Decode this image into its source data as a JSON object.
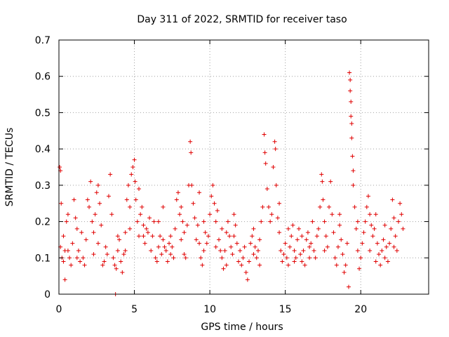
{
  "chart_data": {
    "type": "scatter",
    "title": "Day 311 of 2022, SRMTID for receiver taso",
    "xlabel": "GPS time / hours",
    "ylabel": "SRMTID / TECUs",
    "xlim": [
      0,
      24.5
    ],
    "ylim": [
      0,
      0.7
    ],
    "xticks": [
      0,
      5,
      10,
      15,
      20
    ],
    "xtick_labels": [
      "0",
      "5",
      "10",
      "15",
      "20"
    ],
    "yticks": [
      0,
      0.1,
      0.2,
      0.3,
      0.4,
      0.5,
      0.6,
      0.7
    ],
    "ytick_labels": [
      "0",
      "0.1",
      "0.2",
      "0.3",
      "0.4",
      "0.5",
      "0.6",
      "0.7"
    ],
    "grid": true,
    "marker": "+",
    "color": "#e00000",
    "series": [
      {
        "name": "SRMTID",
        "points": [
          [
            0.05,
            0.35
          ],
          [
            0.1,
            0.34
          ],
          [
            0.15,
            0.25
          ],
          [
            0.1,
            0.13
          ],
          [
            0.2,
            0.1
          ],
          [
            0.3,
            0.09
          ],
          [
            0.4,
            0.12
          ],
          [
            0.5,
            0.2
          ],
          [
            0.6,
            0.22
          ],
          [
            0.7,
            0.1
          ],
          [
            0.4,
            0.04
          ],
          [
            0.8,
            0.08
          ],
          [
            0.9,
            0.14
          ],
          [
            1.0,
            0.26
          ],
          [
            1.1,
            0.21
          ],
          [
            1.2,
            0.18
          ],
          [
            1.3,
            0.12
          ],
          [
            1.4,
            0.09
          ],
          [
            1.5,
            0.17
          ],
          [
            1.6,
            0.1
          ],
          [
            1.7,
            0.08
          ],
          [
            1.8,
            0.15
          ],
          [
            1.9,
            0.26
          ],
          [
            2.0,
            0.24
          ],
          [
            2.1,
            0.31
          ],
          [
            2.2,
            0.2
          ],
          [
            2.3,
            0.17
          ],
          [
            2.4,
            0.22
          ],
          [
            2.5,
            0.28
          ],
          [
            2.6,
            0.3
          ],
          [
            2.7,
            0.25
          ],
          [
            2.8,
            0.19
          ],
          [
            2.9,
            0.08
          ],
          [
            3.0,
            0.09
          ],
          [
            3.1,
            0.13
          ],
          [
            3.2,
            0.11
          ],
          [
            3.3,
            0.27
          ],
          [
            3.4,
            0.33
          ],
          [
            3.5,
            0.22
          ],
          [
            3.6,
            0.1
          ],
          [
            3.7,
            0.08
          ],
          [
            3.75,
            0.0
          ],
          [
            3.8,
            0.07
          ],
          [
            3.9,
            0.12
          ],
          [
            4.0,
            0.15
          ],
          [
            4.1,
            0.09
          ],
          [
            4.2,
            0.06
          ],
          [
            4.3,
            0.11
          ],
          [
            4.4,
            0.17
          ],
          [
            4.5,
            0.26
          ],
          [
            4.6,
            0.3
          ],
          [
            4.7,
            0.24
          ],
          [
            4.8,
            0.33
          ],
          [
            4.9,
            0.35
          ],
          [
            5.0,
            0.37
          ],
          [
            5.05,
            0.31
          ],
          [
            5.1,
            0.26
          ],
          [
            5.2,
            0.2
          ],
          [
            5.3,
            0.16
          ],
          [
            5.4,
            0.22
          ],
          [
            5.5,
            0.24
          ],
          [
            5.6,
            0.19
          ],
          [
            5.7,
            0.14
          ],
          [
            5.8,
            0.18
          ],
          [
            5.9,
            0.17
          ],
          [
            6.0,
            0.21
          ],
          [
            6.1,
            0.12
          ],
          [
            6.2,
            0.16
          ],
          [
            6.3,
            0.2
          ],
          [
            6.4,
            0.1
          ],
          [
            6.5,
            0.09
          ],
          [
            6.6,
            0.13
          ],
          [
            6.7,
            0.16
          ],
          [
            6.8,
            0.11
          ],
          [
            6.9,
            0.15
          ],
          [
            7.0,
            0.13
          ],
          [
            7.1,
            0.12
          ],
          [
            7.2,
            0.09
          ],
          [
            7.3,
            0.14
          ],
          [
            7.4,
            0.16
          ],
          [
            7.5,
            0.13
          ],
          [
            7.6,
            0.1
          ],
          [
            7.7,
            0.18
          ],
          [
            7.8,
            0.26
          ],
          [
            7.9,
            0.28
          ],
          [
            8.0,
            0.22
          ],
          [
            8.1,
            0.15
          ],
          [
            8.2,
            0.2
          ],
          [
            8.3,
            0.11
          ],
          [
            8.4,
            0.1
          ],
          [
            8.5,
            0.19
          ],
          [
            8.6,
            0.3
          ],
          [
            8.7,
            0.42
          ],
          [
            8.75,
            0.39
          ],
          [
            8.8,
            0.3
          ],
          [
            8.9,
            0.25
          ],
          [
            9.0,
            0.21
          ],
          [
            9.1,
            0.15
          ],
          [
            9.2,
            0.19
          ],
          [
            9.3,
            0.14
          ],
          [
            9.4,
            0.1
          ],
          [
            9.5,
            0.08
          ],
          [
            9.6,
            0.12
          ],
          [
            9.7,
            0.17
          ],
          [
            9.8,
            0.14
          ],
          [
            9.9,
            0.16
          ],
          [
            10.0,
            0.22
          ],
          [
            10.1,
            0.27
          ],
          [
            10.2,
            0.3
          ],
          [
            10.3,
            0.25
          ],
          [
            10.4,
            0.2
          ],
          [
            10.5,
            0.23
          ],
          [
            10.6,
            0.15
          ],
          [
            10.7,
            0.12
          ],
          [
            10.8,
            0.1
          ],
          [
            10.9,
            0.07
          ],
          [
            11.0,
            0.12
          ],
          [
            11.1,
            0.17
          ],
          [
            11.2,
            0.2
          ],
          [
            11.3,
            0.16
          ],
          [
            11.4,
            0.13
          ],
          [
            11.5,
            0.11
          ],
          [
            11.6,
            0.16
          ],
          [
            11.7,
            0.19
          ],
          [
            11.8,
            0.14
          ],
          [
            11.9,
            0.09
          ],
          [
            12.0,
            0.12
          ],
          [
            12.1,
            0.08
          ],
          [
            12.2,
            0.1
          ],
          [
            12.3,
            0.13
          ],
          [
            12.4,
            0.06
          ],
          [
            12.5,
            0.04
          ],
          [
            12.6,
            0.09
          ],
          [
            12.7,
            0.14
          ],
          [
            12.8,
            0.16
          ],
          [
            12.9,
            0.18
          ],
          [
            13.0,
            0.13
          ],
          [
            13.1,
            0.1
          ],
          [
            13.2,
            0.12
          ],
          [
            13.3,
            0.15
          ],
          [
            13.4,
            0.2
          ],
          [
            13.5,
            0.24
          ],
          [
            13.6,
            0.44
          ],
          [
            13.65,
            0.39
          ],
          [
            13.7,
            0.36
          ],
          [
            13.8,
            0.29
          ],
          [
            13.9,
            0.24
          ],
          [
            14.0,
            0.2
          ],
          [
            14.1,
            0.22
          ],
          [
            14.2,
            0.35
          ],
          [
            14.3,
            0.42
          ],
          [
            14.35,
            0.4
          ],
          [
            14.4,
            0.3
          ],
          [
            14.5,
            0.21
          ],
          [
            14.6,
            0.17
          ],
          [
            14.7,
            0.12
          ],
          [
            14.8,
            0.09
          ],
          [
            14.9,
            0.11
          ],
          [
            15.0,
            0.14
          ],
          [
            15.1,
            0.1
          ],
          [
            15.2,
            0.08
          ],
          [
            15.3,
            0.13
          ],
          [
            15.4,
            0.16
          ],
          [
            15.5,
            0.19
          ],
          [
            15.6,
            0.12
          ],
          [
            15.7,
            0.1
          ],
          [
            15.8,
            0.15
          ],
          [
            15.9,
            0.18
          ],
          [
            16.0,
            0.11
          ],
          [
            16.1,
            0.09
          ],
          [
            16.2,
            0.12
          ],
          [
            16.3,
            0.08
          ],
          [
            16.4,
            0.15
          ],
          [
            16.5,
            0.17
          ],
          [
            16.6,
            0.1
          ],
          [
            16.7,
            0.14
          ],
          [
            16.8,
            0.2
          ],
          [
            16.9,
            0.12
          ],
          [
            17.0,
            0.1
          ],
          [
            17.1,
            0.16
          ],
          [
            17.2,
            0.18
          ],
          [
            17.3,
            0.24
          ],
          [
            17.4,
            0.33
          ],
          [
            17.45,
            0.31
          ],
          [
            17.5,
            0.26
          ],
          [
            17.6,
            0.2
          ],
          [
            17.7,
            0.16
          ],
          [
            17.8,
            0.13
          ],
          [
            17.9,
            0.24
          ],
          [
            18.0,
            0.31
          ],
          [
            18.1,
            0.22
          ],
          [
            18.2,
            0.17
          ],
          [
            18.3,
            0.1
          ],
          [
            18.4,
            0.08
          ],
          [
            18.5,
            0.13
          ],
          [
            18.6,
            0.19
          ],
          [
            18.7,
            0.15
          ],
          [
            18.8,
            0.11
          ],
          [
            18.9,
            0.06
          ],
          [
            19.0,
            0.08
          ],
          [
            19.1,
            0.14
          ],
          [
            19.2,
            0.02
          ],
          [
            19.25,
            0.61
          ],
          [
            19.3,
            0.59
          ],
          [
            19.3,
            0.56
          ],
          [
            19.35,
            0.53
          ],
          [
            19.35,
            0.49
          ],
          [
            19.4,
            0.47
          ],
          [
            19.4,
            0.43
          ],
          [
            19.45,
            0.38
          ],
          [
            19.5,
            0.34
          ],
          [
            19.5,
            0.3
          ],
          [
            19.6,
            0.24
          ],
          [
            19.7,
            0.18
          ],
          [
            19.8,
            0.12
          ],
          [
            19.9,
            0.07
          ],
          [
            20.0,
            0.1
          ],
          [
            20.1,
            0.14
          ],
          [
            20.2,
            0.17
          ],
          [
            20.3,
            0.2
          ],
          [
            20.4,
            0.24
          ],
          [
            20.5,
            0.27
          ],
          [
            20.6,
            0.22
          ],
          [
            20.7,
            0.19
          ],
          [
            20.8,
            0.16
          ],
          [
            20.9,
            0.18
          ],
          [
            21.0,
            0.22
          ],
          [
            21.1,
            0.14
          ],
          [
            21.2,
            0.11
          ],
          [
            21.3,
            0.08
          ],
          [
            21.4,
            0.12
          ],
          [
            21.5,
            0.15
          ],
          [
            21.6,
            0.19
          ],
          [
            21.7,
            0.13
          ],
          [
            21.8,
            0.09
          ],
          [
            21.9,
            0.14
          ],
          [
            22.0,
            0.18
          ],
          [
            22.1,
            0.26
          ],
          [
            22.2,
            0.21
          ],
          [
            22.3,
            0.16
          ],
          [
            22.4,
            0.12
          ],
          [
            22.5,
            0.2
          ],
          [
            22.6,
            0.25
          ],
          [
            22.7,
            0.22
          ],
          [
            22.8,
            0.18
          ],
          [
            0.3,
            0.16
          ],
          [
            0.6,
            0.12
          ],
          [
            1.2,
            0.1
          ],
          [
            2.6,
            0.14
          ],
          [
            3.9,
            0.16
          ],
          [
            4.4,
            0.12
          ],
          [
            5.6,
            0.16
          ],
          [
            6.6,
            0.2
          ],
          [
            7.4,
            0.11
          ],
          [
            8.3,
            0.17
          ],
          [
            9.6,
            0.2
          ],
          [
            10.4,
            0.13
          ],
          [
            11.6,
            0.22
          ],
          [
            12.9,
            0.11
          ],
          [
            14.6,
            0.25
          ],
          [
            15.6,
            0.09
          ],
          [
            16.6,
            0.13
          ],
          [
            17.6,
            0.12
          ],
          [
            18.6,
            0.22
          ],
          [
            20.6,
            0.12
          ],
          [
            21.6,
            0.1
          ],
          [
            22.2,
            0.13
          ],
          [
            5.3,
            0.29
          ],
          [
            8.1,
            0.24
          ],
          [
            10.8,
            0.18
          ],
          [
            13.3,
            0.08
          ],
          [
            16.1,
            0.16
          ],
          [
            19.8,
            0.2
          ],
          [
            21.0,
            0.09
          ],
          [
            2.3,
            0.11
          ],
          [
            4.7,
            0.18
          ],
          [
            6.9,
            0.24
          ],
          [
            9.3,
            0.28
          ],
          [
            11.1,
            0.08
          ],
          [
            15.2,
            0.18
          ]
        ]
      }
    ]
  }
}
